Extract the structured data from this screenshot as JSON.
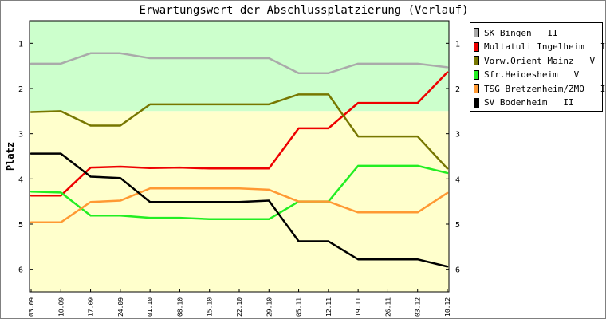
{
  "chart_data": {
    "type": "line",
    "title": "Erwartungswert der Abschlussplatzierung (Verlauf)",
    "ylabel": "Platz",
    "xlabel": "",
    "ylim": [
      0.5,
      6.5
    ],
    "y_inverted": true,
    "yticks": [
      1,
      2,
      3,
      4,
      5,
      6
    ],
    "x": [
      "03.09",
      "10.09",
      "17.09",
      "24.09",
      "01.10",
      "08.10",
      "15.10",
      "22.10",
      "29.10",
      "05.11",
      "12.11",
      "19.11",
      "26.11",
      "03.12",
      "10.12"
    ],
    "bands": [
      {
        "from": 0.5,
        "to": 2.5,
        "color": "#ccffcc"
      },
      {
        "from": 2.5,
        "to": 6.5,
        "color": "#ffffcc"
      }
    ],
    "grid": false,
    "legend_position": "top-right",
    "series": [
      {
        "name": "SK Bingen   II",
        "color": "#aaaaaa",
        "values": [
          1.45,
          1.45,
          1.22,
          1.22,
          1.33,
          1.33,
          1.33,
          1.33,
          1.33,
          1.66,
          1.66,
          1.45,
          1.45,
          1.45,
          1.53
        ]
      },
      {
        "name": "Multatuli Ingelheim   IV",
        "color": "#ee0000",
        "values": [
          4.37,
          4.37,
          3.75,
          3.73,
          3.76,
          3.75,
          3.77,
          3.77,
          3.77,
          2.88,
          2.88,
          2.32,
          2.32,
          2.32,
          1.64
        ]
      },
      {
        "name": "Vorw.Orient Mainz   V",
        "color": "#777700",
        "values": [
          2.52,
          2.5,
          2.82,
          2.82,
          2.35,
          2.35,
          2.35,
          2.35,
          2.35,
          2.13,
          2.13,
          3.06,
          3.06,
          3.06,
          3.77
        ]
      },
      {
        "name": "Sfr.Heidesheim   V",
        "color": "#22ee22",
        "values": [
          4.28,
          4.3,
          4.81,
          4.81,
          4.86,
          4.86,
          4.89,
          4.89,
          4.89,
          4.5,
          4.5,
          3.71,
          3.71,
          3.71,
          3.87
        ]
      },
      {
        "name": "TSG Bretzenheim/ZMO   II",
        "color": "#ff9933",
        "values": [
          4.96,
          4.96,
          4.51,
          4.48,
          4.21,
          4.21,
          4.21,
          4.21,
          4.24,
          4.5,
          4.5,
          4.74,
          4.74,
          4.74,
          4.31
        ]
      },
      {
        "name": "SV Bodenheim   II",
        "color": "#000000",
        "values": [
          3.44,
          3.44,
          3.95,
          3.98,
          4.51,
          4.51,
          4.51,
          4.51,
          4.48,
          5.38,
          5.38,
          5.78,
          5.78,
          5.78,
          5.94
        ]
      }
    ]
  }
}
